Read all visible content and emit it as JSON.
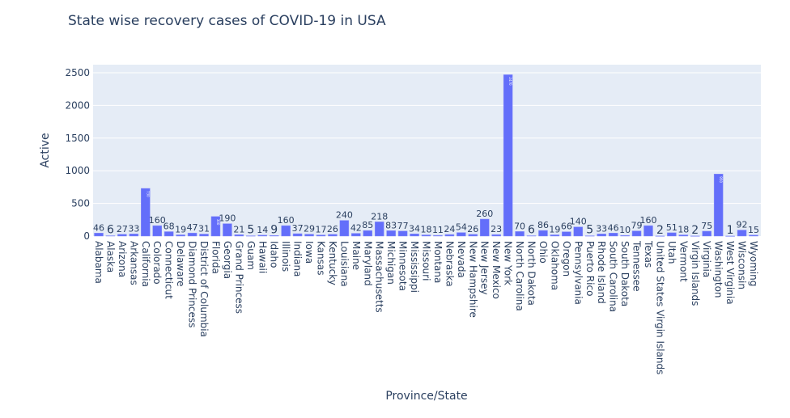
{
  "chart_data": {
    "type": "bar",
    "title": "State wise recovery cases of COVID-19 in USA",
    "xlabel": "Province/State",
    "ylabel": "Active",
    "ylim": [
      0,
      2600
    ],
    "yticks": [
      0,
      500,
      1000,
      1500,
      2000,
      2500
    ],
    "grid": true,
    "bar_color": "#636efa",
    "plot_bg": "#e5ecf6",
    "categories": [
      "Alabama",
      "Alaska",
      "Arizona",
      "Arkansas",
      "California",
      "Colorado",
      "Connecticut",
      "Delaware",
      "Diamond Princess",
      "District of Columbia",
      "Florida",
      "Georgia",
      "Grand Princess",
      "Guam",
      "Hawaii",
      "Idaho",
      "Illinois",
      "Indiana",
      "Iowa",
      "Kansas",
      "Kentucky",
      "Louisiana",
      "Maine",
      "Maryland",
      "Massachusetts",
      "Michigan",
      "Minnesota",
      "Mississippi",
      "Missouri",
      "Montana",
      "Nebraska",
      "Nevada",
      "New Hampshire",
      "New Jersey",
      "New Mexico",
      "New York",
      "North Carolina",
      "North Dakota",
      "Ohio",
      "Oklahoma",
      "Oregon",
      "Pennsylvania",
      "Puerto Rico",
      "Rhode Island",
      "South Carolina",
      "South Dakota",
      "Tennessee",
      "Texas",
      "United States Virgin Islands",
      "Utah",
      "Vermont",
      "Virgin Islands",
      "Virginia",
      "Washington",
      "West Virginia",
      "Wisconsin",
      "Wyoming"
    ],
    "values": [
      46,
      6,
      27,
      33,
      730,
      160,
      68,
      19,
      47,
      31,
      300,
      190,
      21,
      5,
      14,
      9,
      160,
      37,
      29,
      17,
      26,
      240,
      42,
      85,
      218,
      83,
      77,
      34,
      18,
      11,
      24,
      54,
      26,
      260,
      23,
      2470,
      70,
      6,
      86,
      19,
      66,
      140,
      5,
      33,
      46,
      10,
      79,
      160,
      2,
      51,
      18,
      2,
      75,
      950,
      1,
      92,
      15
    ]
  }
}
